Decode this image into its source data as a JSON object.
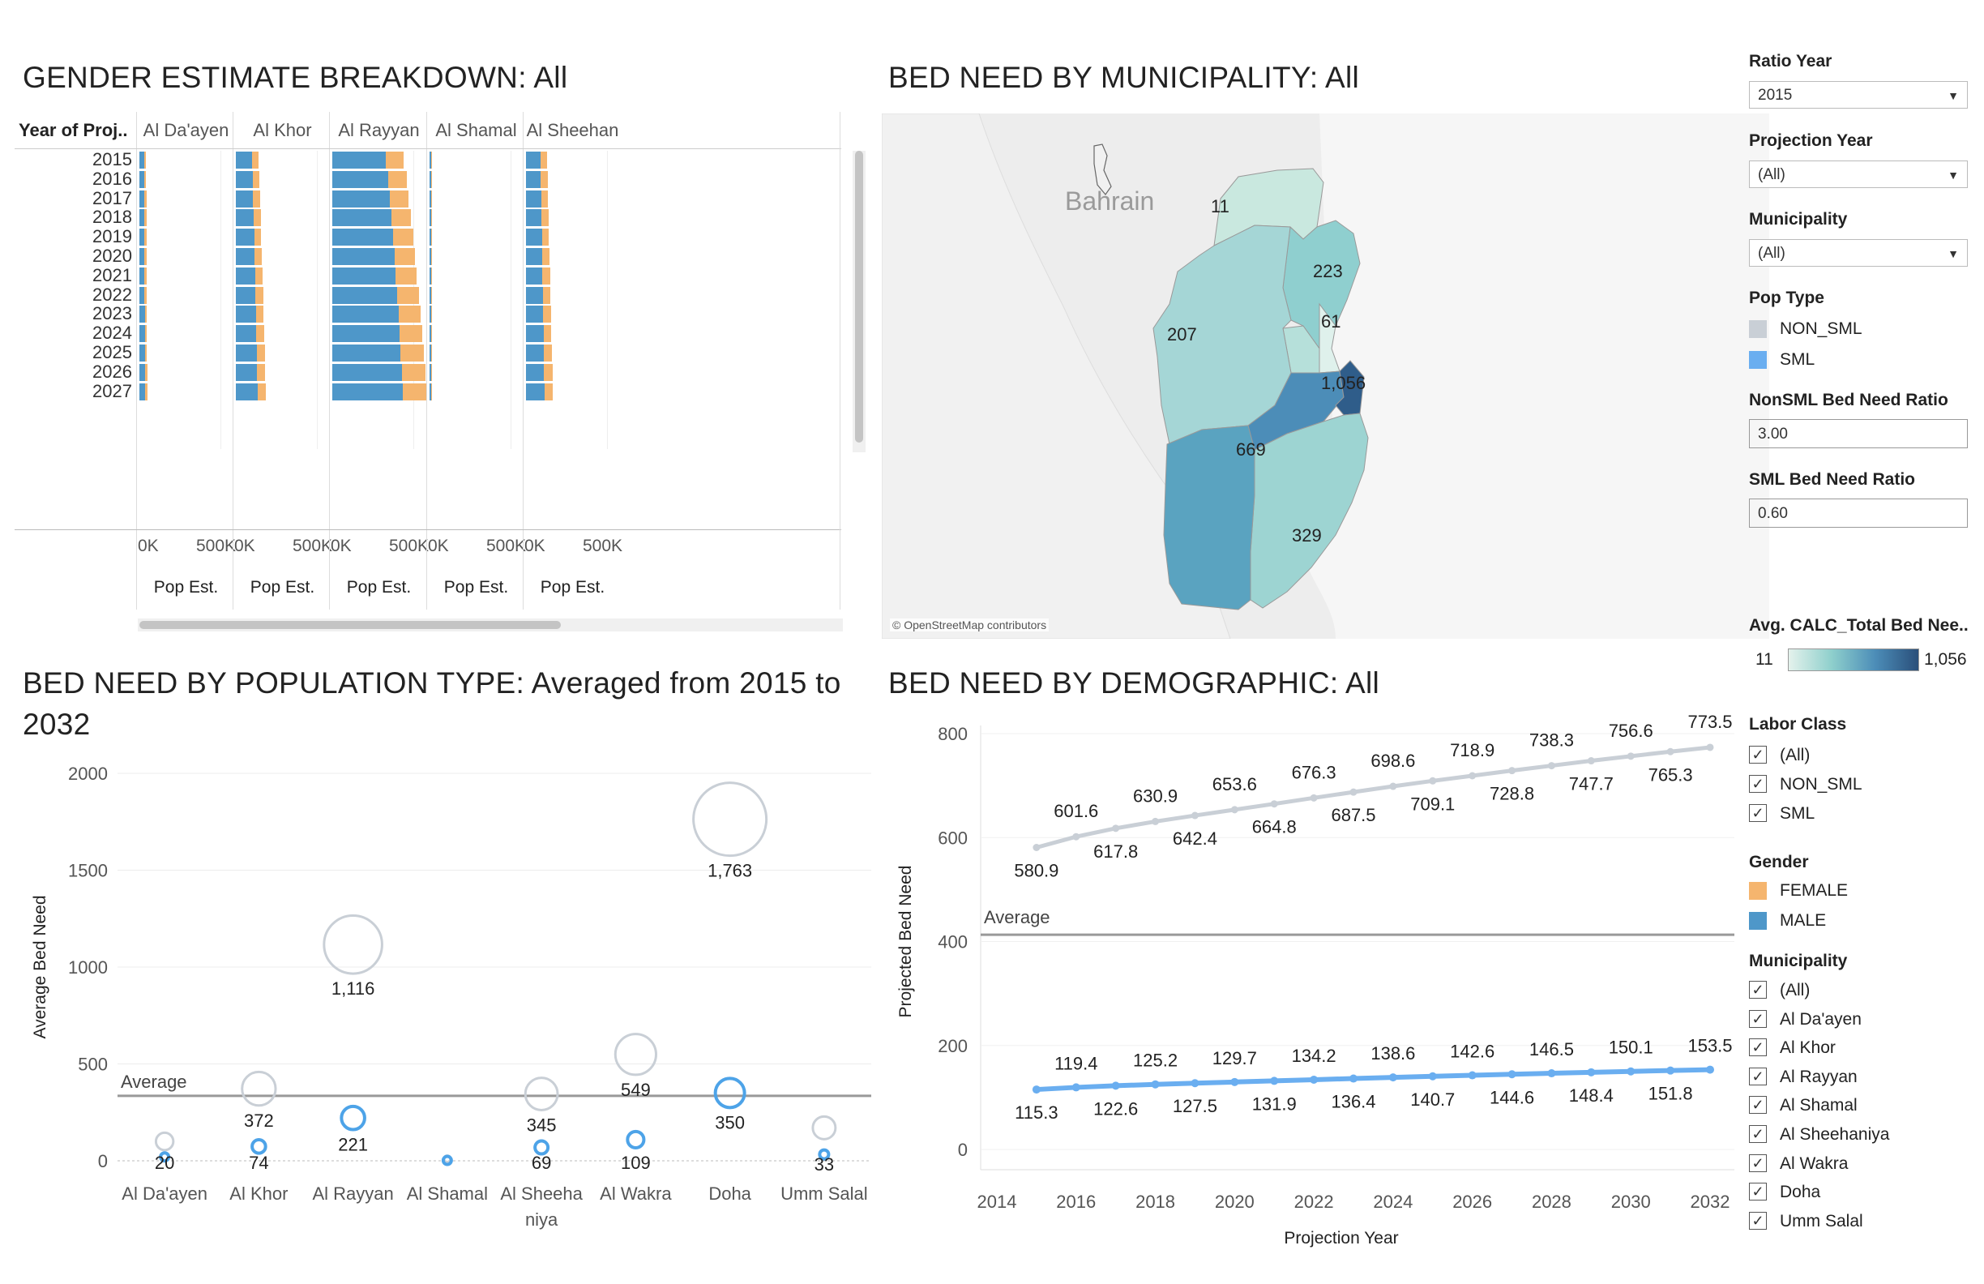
{
  "titles": {
    "gender": "GENDER ESTIMATE BREAKDOWN: All",
    "map": "BED NEED BY MUNICIPALITY: All",
    "pop_line1": "BED NEED BY POPULATION TYPE: Averaged from 2015 to",
    "pop_line2": "2032",
    "demo": "BED NEED BY DEMOGRAPHIC: All"
  },
  "gender_chart": {
    "row_header": "Year of Proj..",
    "panes": [
      "Al Da'ayen",
      "Al Khor",
      "Al Rayyan",
      "Al Shamal",
      "Al Sheehan"
    ],
    "years": [
      "2015",
      "2016",
      "2017",
      "2018",
      "2019",
      "2020",
      "2021",
      "2022",
      "2023",
      "2024",
      "2025",
      "2026",
      "2027"
    ],
    "axis_ticks": [
      "0K",
      "500K"
    ],
    "axis_title": "Pop Est.",
    "male_k": {
      "Al Da'ayen": [
        30,
        30,
        31,
        31,
        31,
        32,
        32,
        32,
        33,
        33,
        33,
        34,
        34
      ],
      "Al Khor": [
        100,
        104,
        107,
        110,
        113,
        116,
        118,
        121,
        124,
        126,
        129,
        131,
        134
      ],
      "Al Rayyan": [
        330,
        345,
        355,
        365,
        375,
        385,
        392,
        400,
        408,
        415,
        422,
        428,
        435
      ],
      "Al Shamal": [
        8,
        8,
        8,
        8,
        8,
        8,
        8,
        8,
        9,
        9,
        9,
        9,
        9
      ],
      "Al Sheehan": [
        90,
        92,
        94,
        96,
        98,
        100,
        102,
        104,
        106,
        108,
        110,
        112,
        114
      ]
    },
    "female_k": {
      "Al Da'ayen": [
        12,
        12,
        12,
        12,
        12,
        13,
        13,
        13,
        13,
        13,
        13,
        14,
        14
      ],
      "Al Khor": [
        40,
        41,
        42,
        43,
        44,
        45,
        46,
        47,
        48,
        49,
        50,
        51,
        52
      ],
      "Al Rayyan": [
        110,
        114,
        117,
        120,
        124,
        127,
        130,
        133,
        136,
        139,
        142,
        145,
        148
      ],
      "Al Shamal": [
        4,
        4,
        4,
        4,
        4,
        4,
        4,
        4,
        4,
        4,
        4,
        4,
        4
      ],
      "Al Sheehan": [
        40,
        41,
        42,
        43,
        44,
        45,
        46,
        47,
        48,
        49,
        50,
        51,
        52
      ]
    },
    "colors": {
      "male": "#4e97c9",
      "female": "#f5b56e"
    }
  },
  "map": {
    "country_label": "Bahrain",
    "values": [
      "11",
      "223",
      "61",
      "207",
      "1,056",
      "669",
      "329"
    ],
    "credit": "© OpenStreetMap contributors"
  },
  "sidebar": {
    "ratio_year_label": "Ratio Year",
    "ratio_year_value": "2015",
    "projection_year_label": "Projection Year",
    "projection_year_value": "(All)",
    "municipality_filter_label": "Municipality",
    "municipality_filter_value": "(All)",
    "pop_type_label": "Pop Type",
    "pop_types": [
      {
        "label": "NON_SML",
        "color": "#c9cfd6"
      },
      {
        "label": "SML",
        "color": "#6aaef0"
      }
    ],
    "nonsml_ratio_label": "NonSML Bed Need Ratio",
    "nonsml_ratio_value": "3.00",
    "sml_ratio_label": "SML Bed Need Ratio",
    "sml_ratio_value": "0.60",
    "color_legend_label": "Avg. CALC_Total Bed Nee..",
    "color_min": "11",
    "color_max": "1,056",
    "labor_class_label": "Labor Class",
    "labor_class": [
      "(All)",
      "NON_SML",
      "SML"
    ],
    "gender_label": "Gender",
    "genders": [
      {
        "label": "FEMALE",
        "color": "#f5b56e"
      },
      {
        "label": "MALE",
        "color": "#4e97c9"
      }
    ],
    "municipality_label": "Municipality",
    "municipalities": [
      "(All)",
      "Al Da'ayen",
      "Al Khor",
      "Al Rayyan",
      "Al Shamal",
      "Al Sheehaniya",
      "Al Wakra",
      "Doha",
      "Umm Salal"
    ]
  },
  "chart_data": [
    {
      "type": "scatter",
      "title": "BED NEED BY POPULATION TYPE: Averaged from 2015 to 2032",
      "ylabel": "Average Bed Need",
      "ylim": [
        0,
        2000
      ],
      "yticks": [
        0,
        500,
        1000,
        1500,
        2000
      ],
      "categories": [
        "Al Da'ayen",
        "Al Khor",
        "Al Rayyan",
        "Al Shamal",
        "Al Sheehaniya",
        "Al Wakra",
        "Doha",
        "Umm Salal"
      ],
      "category_labels": [
        [
          "Al Da'ayen"
        ],
        [
          "Al Khor"
        ],
        [
          "Al Rayyan"
        ],
        [
          "Al Shamal"
        ],
        [
          "Al Sheeha",
          "niya"
        ],
        [
          "Al Wakra"
        ],
        [
          "Doha"
        ],
        [
          "Umm Salal"
        ]
      ],
      "series": [
        {
          "name": "NON_SML",
          "color": "#c9cfd6",
          "values": [
            100,
            372,
            1116,
            10,
            345,
            549,
            1763,
            170
          ]
        },
        {
          "name": "SML",
          "color": "#4da3e8",
          "values": [
            20,
            74,
            221,
            2,
            69,
            109,
            350,
            33
          ]
        }
      ],
      "data_labels": [
        {
          "category": "Al Da'ayen",
          "text": "20"
        },
        {
          "category": "Al Khor",
          "text": "372"
        },
        {
          "category": "Al Khor",
          "text": "74"
        },
        {
          "category": "Al Rayyan",
          "text": "1,116"
        },
        {
          "category": "Al Rayyan",
          "text": "221"
        },
        {
          "category": "Al Sheehaniya",
          "text": "345"
        },
        {
          "category": "Al Sheehaniya",
          "text": "69"
        },
        {
          "category": "Al Wakra",
          "text": "549"
        },
        {
          "category": "Al Wakra",
          "text": "109"
        },
        {
          "category": "Doha",
          "text": "1,763"
        },
        {
          "category": "Doha",
          "text": "350"
        },
        {
          "category": "Umm Salal",
          "text": "33"
        }
      ],
      "reference_line": {
        "label": "Average",
        "value": 335
      }
    },
    {
      "type": "line",
      "title": "BED NEED BY DEMOGRAPHIC: All",
      "xlabel": "Projection Year",
      "ylabel": "Projected Bed Need",
      "xlim": [
        2014,
        2032
      ],
      "ylim": [
        0,
        800
      ],
      "xticks": [
        2014,
        2016,
        2018,
        2020,
        2022,
        2024,
        2026,
        2028,
        2030,
        2032
      ],
      "yticks": [
        0,
        200,
        400,
        600,
        800
      ],
      "x": [
        2015,
        2016,
        2017,
        2018,
        2019,
        2020,
        2021,
        2022,
        2023,
        2024,
        2025,
        2026,
        2027,
        2028,
        2029,
        2030,
        2031,
        2032
      ],
      "series": [
        {
          "name": "NON_SML",
          "color": "#c9cfd6",
          "values": [
            580.9,
            601.6,
            617.8,
            630.9,
            642.4,
            653.6,
            664.8,
            676.3,
            687.5,
            698.6,
            709.1,
            718.9,
            728.8,
            738.3,
            747.7,
            756.6,
            765.3,
            773.5
          ],
          "labels": [
            "580.9",
            "601.6",
            "617.8",
            "630.9",
            "642.4",
            "653.6",
            "664.8",
            "676.3",
            "687.5",
            "698.6",
            "709.1",
            "718.9",
            "728.8",
            "738.3",
            "747.7",
            "756.6",
            "765.3",
            "773.5"
          ]
        },
        {
          "name": "SML",
          "color": "#6aaef0",
          "values": [
            115.3,
            119.4,
            122.6,
            125.2,
            127.5,
            129.7,
            131.9,
            134.2,
            136.4,
            138.6,
            140.7,
            142.6,
            144.6,
            146.5,
            148.4,
            150.1,
            151.8,
            153.5
          ],
          "labels": [
            "115.3",
            "119.4",
            "122.6",
            "125.2",
            "127.5",
            "129.7",
            "131.9",
            "134.2",
            "136.4",
            "138.6",
            "140.7",
            "142.6",
            "144.6",
            "146.5",
            "148.4",
            "150.1",
            "151.8",
            "153.5"
          ]
        }
      ],
      "reference_line": {
        "label": "Average",
        "value": 413
      }
    }
  ]
}
